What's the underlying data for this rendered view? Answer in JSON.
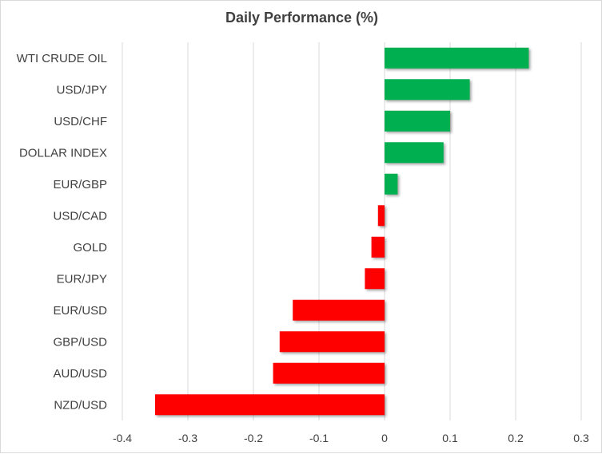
{
  "chart_data": {
    "type": "bar",
    "orientation": "horizontal",
    "title": "Daily Performance  (%)",
    "categories": [
      "WTI CRUDE OIL",
      "USD/JPY",
      "USD/CHF",
      "DOLLAR INDEX",
      "EUR/GBP",
      "USD/CAD",
      "GOLD",
      "EUR/JPY",
      "EUR/USD",
      "GBP/USD",
      "AUD/USD",
      "NZD/USD"
    ],
    "values": [
      0.22,
      0.13,
      0.1,
      0.09,
      0.02,
      -0.01,
      -0.02,
      -0.03,
      -0.14,
      -0.16,
      -0.17,
      -0.35
    ],
    "xlim": [
      -0.4,
      0.3
    ],
    "xticks": [
      "-0.4",
      "-0.3",
      "-0.2",
      "-0.1",
      "0",
      "0.1",
      "0.2",
      "0.3"
    ],
    "xtick_values": [
      -0.4,
      -0.3,
      -0.2,
      -0.1,
      0,
      0.1,
      0.2,
      0.3
    ],
    "grid": "vertical",
    "legend": "none",
    "colors": {
      "positive": "#00b050",
      "negative": "#ff0000",
      "grid": "#d9d9d9",
      "text": "#404040"
    }
  }
}
